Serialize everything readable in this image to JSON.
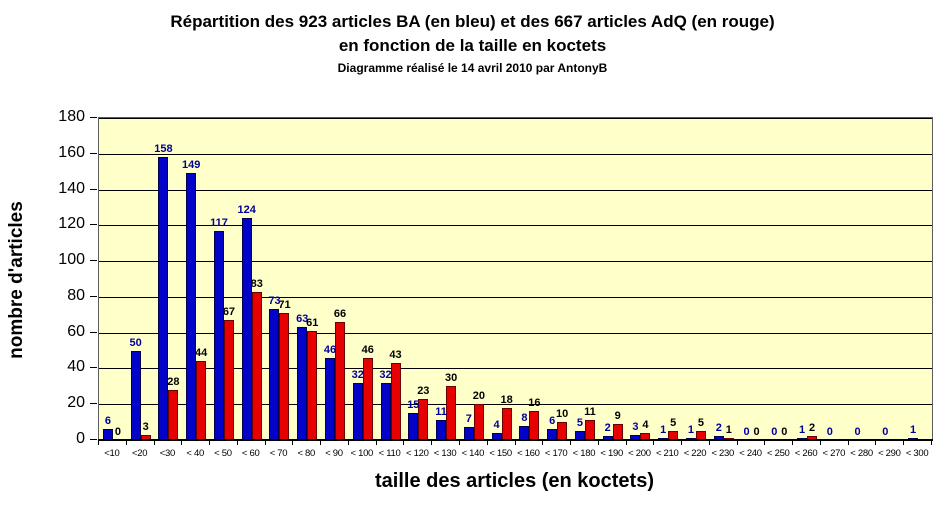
{
  "title": {
    "line1": "Répartition des 923 articles BA (en bleu) et des 667 articles AdQ (en rouge)",
    "line2": "en fonction de la taille en koctets",
    "line3": "Diagramme réalisé le 14 avril 2010 par AntonyB"
  },
  "chart_data": {
    "type": "bar",
    "title": "Répartition des 923 articles BA (en bleu) et des 667 articles AdQ (en rouge) en fonction de la taille en koctets",
    "subtitle": "Diagramme réalisé le 14 avril 2010 par AntonyB",
    "xlabel": "taille des articles (en koctets)",
    "ylabel": "nombre d'articles",
    "ylim": [
      0,
      180
    ],
    "ytick_step": 20,
    "grid": true,
    "legend_position": "none",
    "plot_background": "#ffffc9",
    "categories": [
      "<10",
      "<20",
      "<30",
      "< 40",
      "< 50",
      "< 60",
      "< 70",
      "< 80",
      "< 90",
      "< 100",
      "< 110",
      "< 120",
      "< 130",
      "< 140",
      "< 150",
      "< 160",
      "< 170",
      "< 180",
      "< 190",
      "< 200",
      "< 210",
      "< 220",
      "< 230",
      "< 240",
      "< 250",
      "< 260",
      "< 270",
      "< 280",
      "< 290",
      "< 300"
    ],
    "series": [
      {
        "name": "articles BA (en bleu)",
        "total": 923,
        "color": "#0202c8",
        "label_color": "#00009b",
        "values": [
          6,
          50,
          158,
          149,
          117,
          124,
          73,
          63,
          46,
          32,
          32,
          15,
          11,
          7,
          4,
          8,
          6,
          5,
          2,
          3,
          1,
          1,
          2,
          0,
          0,
          1,
          0,
          0,
          0,
          1
        ]
      },
      {
        "name": "articles AdQ (en rouge)",
        "total": 667,
        "color": "#e60000",
        "label_color": "#000000",
        "values": [
          0,
          3,
          28,
          44,
          67,
          83,
          71,
          61,
          66,
          46,
          43,
          23,
          30,
          20,
          18,
          16,
          10,
          11,
          9,
          4,
          5,
          5,
          1,
          0,
          0,
          2,
          null,
          null,
          null,
          null
        ]
      }
    ]
  }
}
